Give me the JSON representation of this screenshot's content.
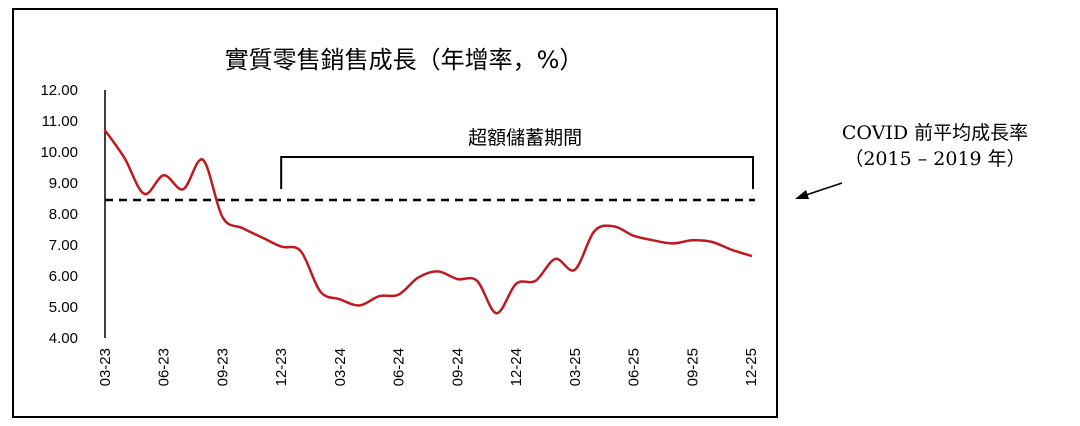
{
  "chart_data": {
    "type": "line",
    "title": "實質零售銷售成長（年增率，%）",
    "xlabel": "",
    "ylabel": "",
    "ylim": [
      4.0,
      12.0
    ],
    "yticks": [
      "4.00",
      "5.00",
      "6.00",
      "7.00",
      "8.00",
      "9.00",
      "10.00",
      "11.00",
      "12.00"
    ],
    "xticks": [
      "03-23",
      "06-23",
      "09-23",
      "12-23",
      "03-24",
      "06-24",
      "09-24",
      "12-24",
      "03-25",
      "06-25",
      "09-25",
      "12-25"
    ],
    "x": [
      "03-23",
      "04-23",
      "05-23",
      "06-23",
      "07-23",
      "08-23",
      "09-23",
      "10-23",
      "11-23",
      "12-23",
      "01-24",
      "02-24",
      "03-24",
      "04-24",
      "05-24",
      "06-24",
      "07-24",
      "08-24",
      "09-24",
      "10-24",
      "11-24",
      "12-24",
      "01-25",
      "02-25",
      "03-25",
      "04-25",
      "05-25",
      "06-25",
      "07-25",
      "08-25",
      "09-25",
      "10-25",
      "11-25",
      "12-25"
    ],
    "series": [
      {
        "color": "#c0191f",
        "values": [
          10.7,
          9.8,
          8.65,
          9.25,
          8.8,
          9.75,
          7.9,
          7.55,
          7.25,
          6.95,
          6.8,
          5.5,
          5.25,
          5.05,
          5.35,
          5.4,
          5.95,
          6.15,
          5.9,
          5.85,
          4.8,
          5.75,
          5.85,
          6.55,
          6.2,
          7.45,
          7.6,
          7.3,
          7.15,
          7.05,
          7.15,
          7.1,
          6.85,
          6.65
        ]
      }
    ],
    "reference_line": {
      "value": 8.45,
      "style": "dashed"
    },
    "bracket": {
      "label": "超額儲蓄期間",
      "start": "12-23",
      "end": "12-25"
    },
    "grid": false
  },
  "annotation": {
    "line1": "COVID 前平均成長率",
    "line2": "（2015 – 2019 年）"
  }
}
